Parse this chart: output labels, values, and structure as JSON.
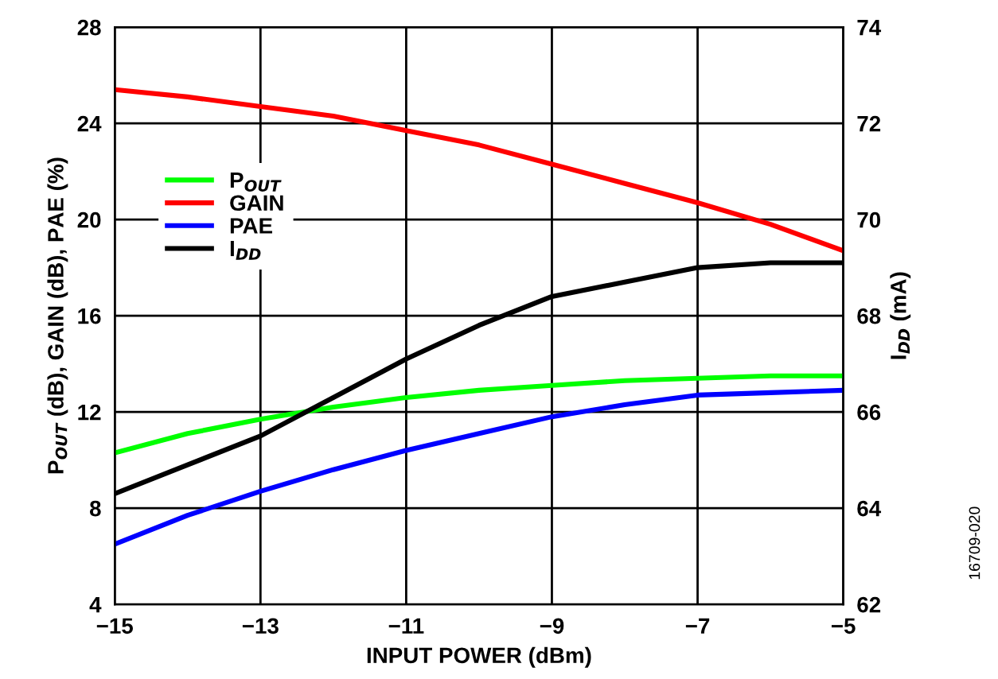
{
  "chart_data": {
    "type": "line",
    "xlabel": "INPUT POWER (dBm)",
    "ylabel": "P$_{OUT}$ (dB), GAIN (dB), PAE (%)",
    "y2label": "I$_{DD}$ (mA)",
    "x": [
      -15,
      -14,
      -13,
      -12,
      -11,
      -10,
      -9,
      -8,
      -7,
      -6,
      -5
    ],
    "series": [
      {
        "name": "P$_{OUT}$",
        "color": "#00ff00",
        "values": [
          10.3,
          11.1,
          11.7,
          12.2,
          12.6,
          12.9,
          13.1,
          13.3,
          13.4,
          13.5,
          13.5
        ]
      },
      {
        "name": "GAIN",
        "color": "#ff0000",
        "values": [
          25.4,
          25.1,
          24.7,
          24.3,
          23.7,
          23.1,
          22.3,
          21.5,
          20.7,
          19.8,
          18.7
        ]
      },
      {
        "name": "PAE",
        "color": "#0000ff",
        "values": [
          6.5,
          7.7,
          8.7,
          9.6,
          10.4,
          11.1,
          11.8,
          12.3,
          12.7,
          12.8,
          12.9
        ]
      },
      {
        "name": "I$_{DD}$",
        "color": "#000000",
        "axis": "y2",
        "values": [
          64.3,
          64.9,
          65.5,
          66.3,
          67.1,
          67.8,
          68.4,
          68.7,
          69.0,
          69.1,
          69.1
        ]
      }
    ],
    "xlim": [
      -15,
      -5
    ],
    "xticks": [
      {
        "value": -15,
        "label": "−15"
      },
      {
        "value": -13,
        "label": "−13"
      },
      {
        "value": -11,
        "label": "−11"
      },
      {
        "value": -9,
        "label": "−9"
      },
      {
        "value": -7,
        "label": "−7"
      },
      {
        "value": -5,
        "label": "−5"
      }
    ],
    "ylim": [
      4,
      28
    ],
    "yticks": [
      4,
      8,
      12,
      16,
      20,
      24,
      28
    ],
    "y2lim": [
      62,
      74
    ],
    "y2ticks": [
      62,
      64,
      66,
      68,
      70,
      72,
      74
    ],
    "grid": true,
    "legend": "top left",
    "line_style": "solid",
    "annotations": [
      "16709-020"
    ]
  }
}
